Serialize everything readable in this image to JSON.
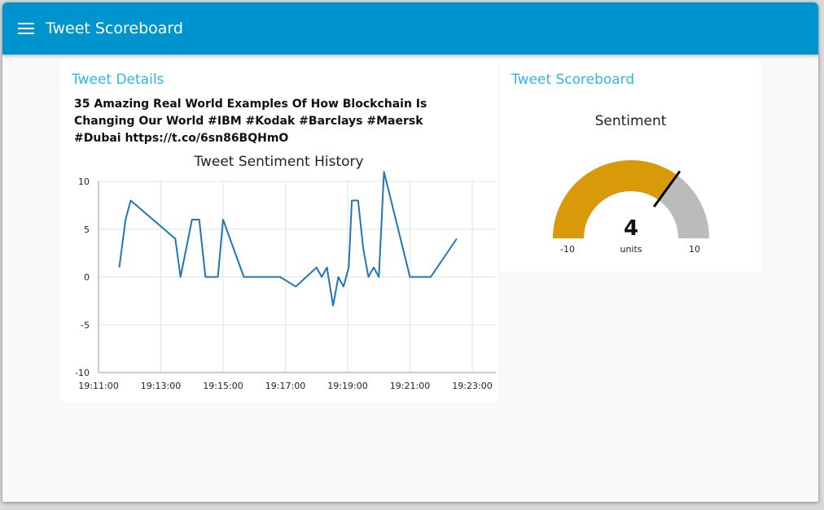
{
  "app": {
    "title": "Tweet Scoreboard"
  },
  "details": {
    "title": "Tweet Details",
    "tweet": "35 Amazing Real World Examples Of How Blockchain Is Changing Our World #IBM #Kodak #Barclays #Maersk #Dubai https://t.co/6sn86BQHmO"
  },
  "chart_data": {
    "type": "line",
    "title": "Tweet Sentiment History",
    "xlabel": "",
    "ylabel": "",
    "ylim": [
      -10,
      10
    ],
    "yticks": [
      "10",
      "5",
      "0",
      "-5",
      "-10"
    ],
    "xticks": [
      "19:11:00",
      "19:13:00",
      "19:15:00",
      "19:17:00",
      "19:19:00",
      "19:21:00",
      "19:23:00"
    ],
    "grid": true,
    "line_color": "#1f77b4",
    "x": [
      "19:11:40",
      "19:11:52",
      "19:12:02",
      "19:13:28",
      "19:13:38",
      "19:14:00",
      "19:14:14",
      "19:14:26",
      "19:14:50",
      "19:15:00",
      "19:15:40",
      "19:16:50",
      "19:17:20",
      "19:18:00",
      "19:18:10",
      "19:18:20",
      "19:18:32",
      "19:18:42",
      "19:18:52",
      "19:19:02",
      "19:19:08",
      "19:19:20",
      "19:19:30",
      "19:19:40",
      "19:19:50",
      "19:20:00",
      "19:20:10",
      "19:21:00",
      "19:21:40",
      "19:22:30"
    ],
    "y": [
      1,
      6,
      8,
      4,
      0,
      6,
      6,
      0,
      0,
      6,
      0,
      0,
      -1,
      1,
      0,
      1,
      -3,
      0,
      -1,
      1,
      8,
      8,
      3,
      0,
      1,
      0,
      11,
      0,
      0,
      4
    ]
  },
  "scoreboard": {
    "title": "Tweet Scoreboard",
    "gauge": {
      "label": "Sentiment",
      "value": 4,
      "value_text": "4",
      "units": "units",
      "min": -10,
      "max": 10,
      "min_label": "-10",
      "max_label": "10",
      "fill_color": "#d99a0a",
      "track_color": "#bbbbbb",
      "needle_color": "#000000"
    }
  }
}
